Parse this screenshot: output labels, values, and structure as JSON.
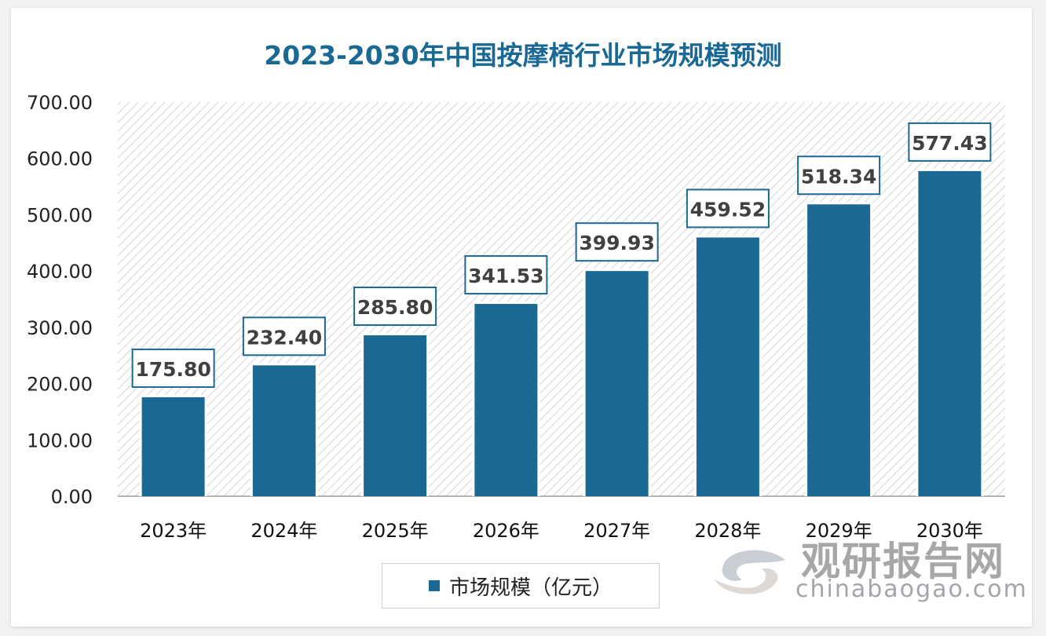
{
  "chart_data": {
    "type": "bar",
    "title": "2023-2030年中国按摩椅行业市场规模预测",
    "categories": [
      "2023年",
      "2024年",
      "2025年",
      "2026年",
      "2027年",
      "2028年",
      "2029年",
      "2030年"
    ],
    "series": [
      {
        "name": "市场规模（亿元）",
        "values": [
          175.8,
          232.4,
          285.8,
          341.53,
          399.93,
          459.52,
          518.34,
          577.43
        ]
      }
    ],
    "data_labels": [
      "175.80",
      "232.40",
      "285.80",
      "341.53",
      "399.93",
      "459.52",
      "518.34",
      "577.43"
    ],
    "yticks": [
      "0.00",
      "100.00",
      "200.00",
      "300.00",
      "400.00",
      "500.00",
      "600.00",
      "700.00"
    ],
    "ylim": [
      0,
      700
    ],
    "grid": false,
    "legend": "bottom",
    "bar_color": "#1a6894",
    "background": "diagonal-hatch"
  },
  "watermark": {
    "cn": "观研报告网",
    "en": "chinabaogao.com"
  }
}
